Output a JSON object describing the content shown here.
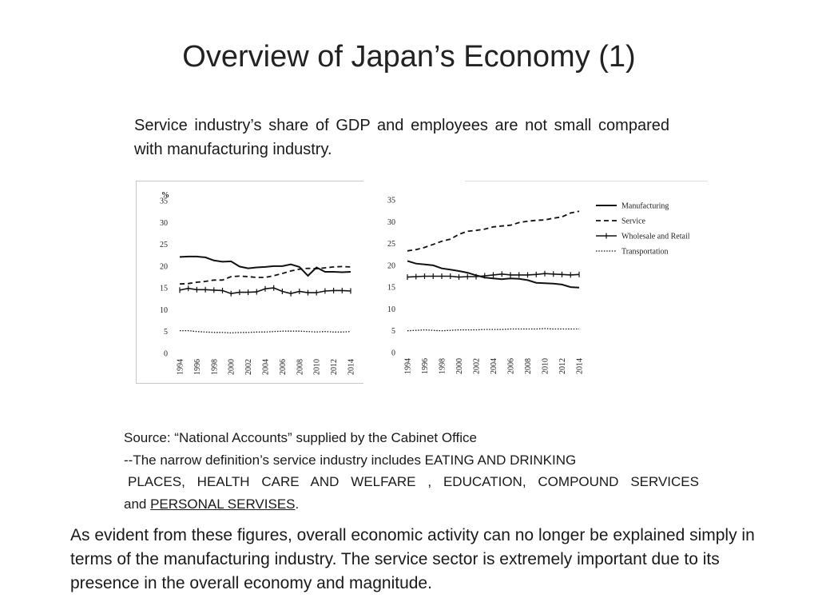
{
  "slide": {
    "title": "Overview of Japan’s Economy (1)",
    "intro": "Service industry’s share of GDP and employees are not small compared with manufacturing industry."
  },
  "chart_data": [
    {
      "type": "line",
      "ylabel": "%",
      "ylim": [
        0,
        35
      ],
      "yticks": [
        0,
        5,
        10,
        15,
        20,
        25,
        30,
        35
      ],
      "x": [
        1994,
        1995,
        1996,
        1997,
        1998,
        1999,
        2000,
        2001,
        2002,
        2003,
        2004,
        2005,
        2006,
        2007,
        2008,
        2009,
        2010,
        2011,
        2012,
        2013,
        2014
      ],
      "xtick_labels": [
        "1994",
        "1996",
        "1998",
        "2000",
        "2002",
        "2004",
        "2006",
        "2008",
        "2010",
        "2012",
        "2014"
      ],
      "legend": false,
      "series": [
        {
          "name": "Manufacturing",
          "style": "solid",
          "values": [
            22.1,
            22.2,
            22.2,
            22.0,
            21.3,
            21.0,
            21.1,
            19.9,
            19.5,
            19.7,
            19.8,
            20.0,
            20.0,
            20.4,
            19.8,
            17.8,
            19.7,
            18.7,
            18.7,
            18.6,
            18.7
          ]
        },
        {
          "name": "Service",
          "style": "dashed",
          "values": [
            15.9,
            16.0,
            16.3,
            16.5,
            16.8,
            16.8,
            17.6,
            17.7,
            17.6,
            17.4,
            17.4,
            17.8,
            18.3,
            18.9,
            19.3,
            19.5,
            19.4,
            19.6,
            19.8,
            19.9,
            19.8
          ]
        },
        {
          "name": "Wholesale and Retail",
          "style": "cross",
          "values": [
            14.5,
            14.9,
            14.6,
            14.6,
            14.5,
            14.4,
            13.7,
            14.0,
            14.0,
            14.1,
            14.8,
            15.0,
            14.2,
            13.7,
            14.2,
            13.9,
            13.9,
            14.3,
            14.4,
            14.4,
            14.3
          ]
        },
        {
          "name": "Transportation",
          "style": "dotted",
          "values": [
            5.2,
            5.2,
            5.0,
            4.9,
            4.8,
            4.8,
            4.7,
            4.8,
            4.8,
            4.9,
            4.9,
            5.0,
            5.1,
            5.1,
            5.1,
            5.0,
            4.9,
            5.0,
            4.9,
            4.9,
            5.0
          ]
        }
      ]
    },
    {
      "type": "line",
      "ylim": [
        0,
        35
      ],
      "yticks": [
        0,
        5,
        10,
        15,
        20,
        25,
        30,
        35
      ],
      "x": [
        1994,
        1995,
        1996,
        1997,
        1998,
        1999,
        2000,
        2001,
        2002,
        2003,
        2004,
        2005,
        2006,
        2007,
        2008,
        2009,
        2010,
        2011,
        2012,
        2013,
        2014
      ],
      "xtick_labels": [
        "1994",
        "1996",
        "1998",
        "2000",
        "2002",
        "2004",
        "2006",
        "2008",
        "2010",
        "2012",
        "2014"
      ],
      "legend": "right",
      "series": [
        {
          "name": "Manufacturing",
          "style": "solid",
          "values": [
            21.0,
            20.4,
            20.2,
            20.0,
            19.3,
            19.0,
            18.7,
            18.3,
            17.7,
            17.2,
            17.0,
            16.8,
            17.0,
            16.9,
            16.6,
            16.0,
            15.9,
            15.8,
            15.6,
            15.0,
            14.9
          ]
        },
        {
          "name": "Service",
          "style": "dashed",
          "values": [
            23.3,
            23.6,
            24.1,
            24.8,
            25.5,
            26.0,
            27.1,
            27.8,
            28.0,
            28.3,
            28.8,
            29.0,
            29.2,
            29.8,
            30.1,
            30.3,
            30.4,
            30.8,
            31.1,
            32.0,
            32.4
          ]
        },
        {
          "name": "Wholesale and Retail",
          "style": "cross",
          "values": [
            17.3,
            17.4,
            17.5,
            17.5,
            17.5,
            17.5,
            17.3,
            17.4,
            17.4,
            17.6,
            17.8,
            18.0,
            17.8,
            17.8,
            17.8,
            17.9,
            18.1,
            18.0,
            17.9,
            17.8,
            17.9
          ]
        },
        {
          "name": "Transportation",
          "style": "dotted",
          "values": [
            5.0,
            5.1,
            5.2,
            5.1,
            5.0,
            5.1,
            5.2,
            5.2,
            5.2,
            5.3,
            5.3,
            5.3,
            5.4,
            5.4,
            5.4,
            5.4,
            5.5,
            5.4,
            5.4,
            5.4,
            5.4
          ]
        }
      ]
    }
  ],
  "source": {
    "line1": "Source: “National Accounts” supplied by the Cabinet Office",
    "line2": "--The narrow definition’s service industry includes EATING AND DRINKING",
    "line3": "PLACES, HEALTH CARE AND WELFARE , EDUCATION, COMPOUND SERVICES",
    "line4_prefix": "and ",
    "line4_underlined": "PERSONAL SERVISES",
    "line4_suffix": "."
  },
  "conclusion": "As evident from these figures, overall economic activity can no longer be explained simply in terms of the manufacturing industry. The service sector is extremely important due to its presence in the overall economy and magnitude."
}
